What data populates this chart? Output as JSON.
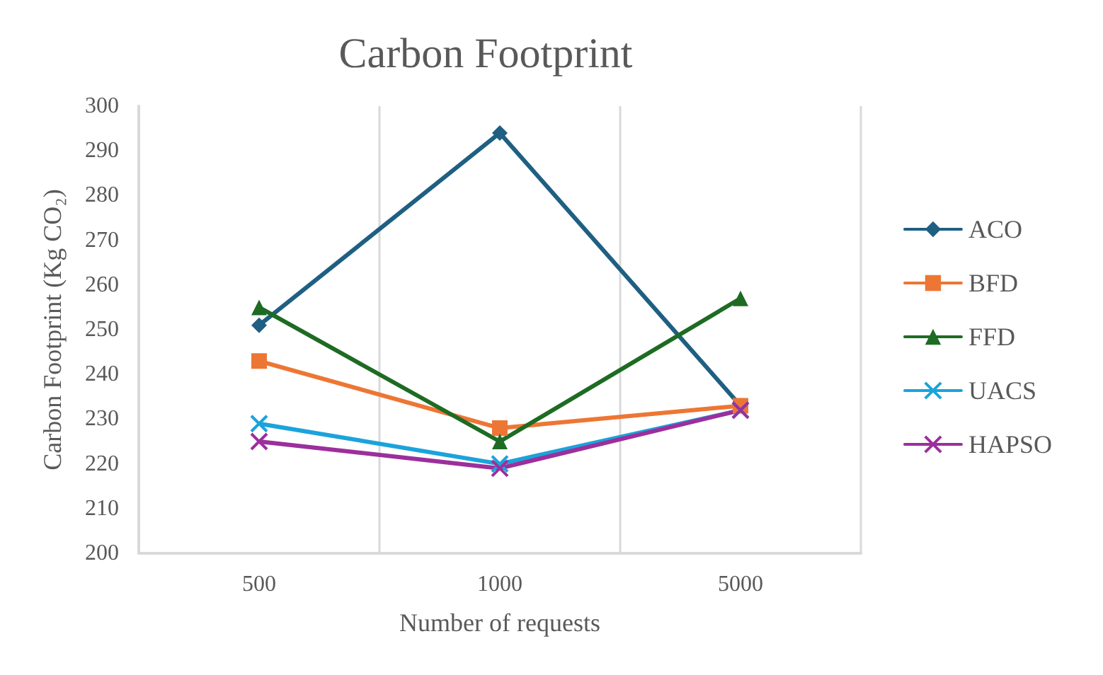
{
  "chart_data": {
    "type": "line",
    "title": "Carbon Footprint",
    "xlabel": "Number of requests",
    "ylabel": "Carbon Footprint (Kg CO₂)",
    "categories": [
      "500",
      "1000",
      "5000"
    ],
    "series": [
      {
        "name": "ACO",
        "color": "#1f5f82",
        "marker": "diamond",
        "values": [
          251,
          294,
          233
        ]
      },
      {
        "name": "BFD",
        "color": "#ed7634",
        "marker": "square",
        "values": [
          243,
          228,
          233
        ]
      },
      {
        "name": "FFD",
        "color": "#1e6b24",
        "marker": "triangle",
        "values": [
          255,
          225,
          257
        ]
      },
      {
        "name": "UACS",
        "color": "#1ba3db",
        "marker": "cross",
        "values": [
          229,
          220,
          232
        ]
      },
      {
        "name": "HAPSO",
        "color": "#9c2f9c",
        "marker": "cross",
        "values": [
          225,
          219,
          232
        ]
      }
    ],
    "ylim": [
      200,
      300
    ],
    "yticks": [
      200,
      210,
      220,
      230,
      240,
      250,
      260,
      270,
      280,
      290,
      300
    ],
    "grid": "x",
    "legend": "right",
    "line_style": "solid"
  }
}
